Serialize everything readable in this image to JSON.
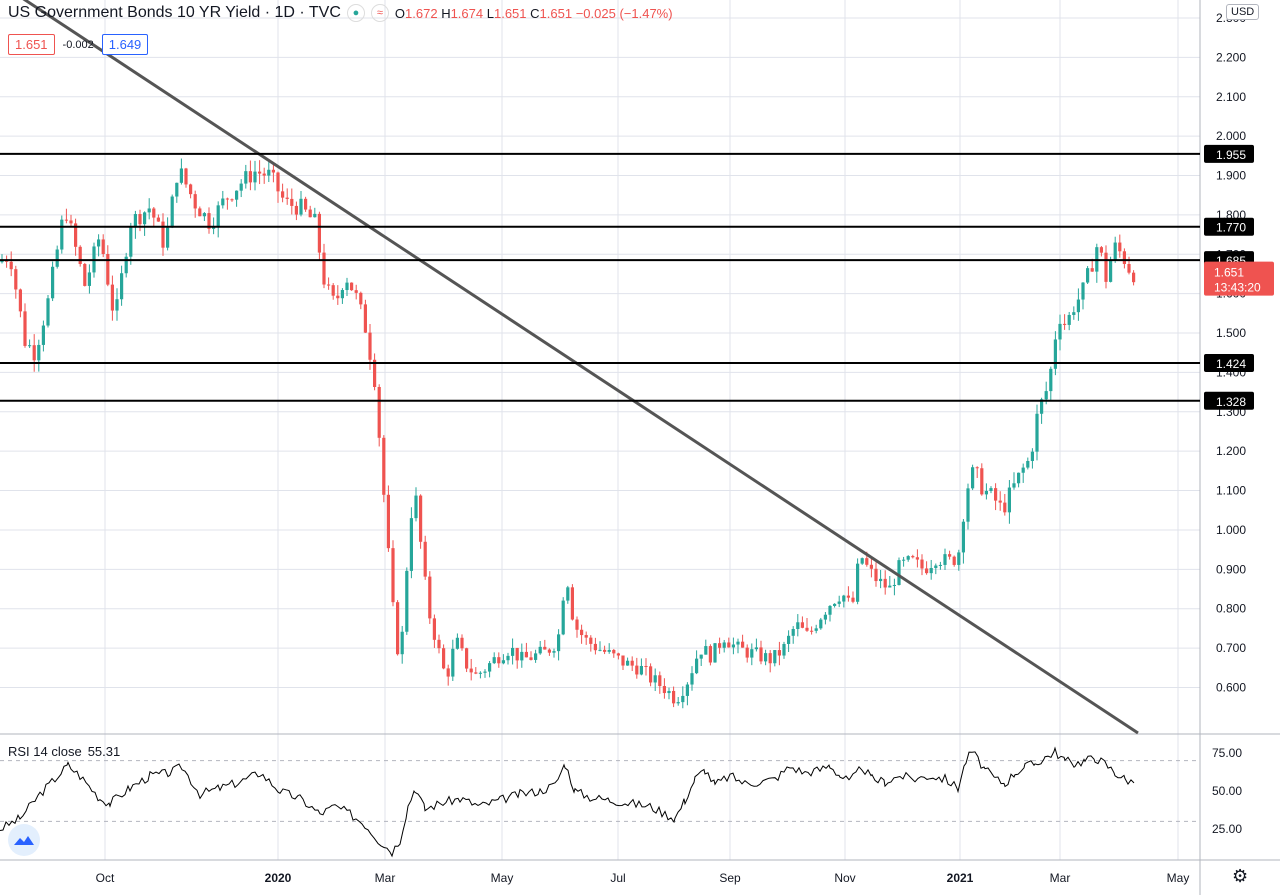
{
  "header": {
    "title": "US Government Bonds 10 YR Yield · 1D · TVC",
    "o_label": "O",
    "o_val": "1.672",
    "h_label": "H",
    "h_val": "1.674",
    "l_label": "L",
    "l_val": "1.651",
    "c_label": "C",
    "c_val": "1.651",
    "change": "−0.025 (−1.47%)",
    "approx_icon": "≈"
  },
  "prices": {
    "sell": "1.651",
    "spread": "-0.002",
    "buy": "1.649"
  },
  "currency": "USD",
  "rsi": {
    "label": "RSI 14 close",
    "value": "55.31"
  },
  "colors": {
    "up": "#26a69a",
    "down": "#ef5350",
    "line": "#000000",
    "trend": "#555555",
    "grid": "#e0e3eb"
  },
  "chart_data": {
    "type": "candlestick",
    "y_range": [
      0.52,
      2.36
    ],
    "y_ticks": [
      "2.300",
      "2.200",
      "2.100",
      "2.000",
      "1.900",
      "1.800",
      "1.700",
      "1.600",
      "1.500",
      "1.400",
      "1.300",
      "1.200",
      "1.100",
      "1.000",
      "0.900",
      "0.800",
      "0.700",
      "0.600"
    ],
    "x_ticks": [
      "Oct",
      "2020",
      "Mar",
      "May",
      "Jul",
      "Sep",
      "Nov",
      "2021",
      "Mar",
      "May"
    ],
    "levels": [
      "1.955",
      "1.770",
      "1.685",
      "1.424",
      "1.328"
    ],
    "current_price": "1.651",
    "countdown": "13:43:20",
    "trendline": {
      "from": [
        "2019-07",
        2.38
      ],
      "to": [
        "2021-03",
        0.52
      ]
    },
    "anchors": [
      [
        0,
        1.68
      ],
      [
        10,
        1.7
      ],
      [
        25,
        1.48
      ],
      [
        35,
        1.45
      ],
      [
        48,
        1.58
      ],
      [
        65,
        1.82
      ],
      [
        85,
        1.62
      ],
      [
        100,
        1.75
      ],
      [
        115,
        1.53
      ],
      [
        130,
        1.78
      ],
      [
        150,
        1.82
      ],
      [
        165,
        1.72
      ],
      [
        178,
        1.92
      ],
      [
        195,
        1.83
      ],
      [
        210,
        1.78
      ],
      [
        225,
        1.84
      ],
      [
        240,
        1.88
      ],
      [
        255,
        1.91
      ],
      [
        270,
        1.9
      ],
      [
        285,
        1.83
      ],
      [
        300,
        1.82
      ],
      [
        315,
        1.78
      ],
      [
        325,
        1.62
      ],
      [
        335,
        1.57
      ],
      [
        345,
        1.65
      ],
      [
        355,
        1.6
      ],
      [
        365,
        1.52
      ],
      [
        375,
        1.38
      ],
      [
        385,
        1.05
      ],
      [
        392,
        0.82
      ],
      [
        400,
        0.65
      ],
      [
        408,
        0.95
      ],
      [
        414,
        1.12
      ],
      [
        420,
        0.98
      ],
      [
        428,
        0.8
      ],
      [
        436,
        0.72
      ],
      [
        446,
        0.62
      ],
      [
        456,
        0.72
      ],
      [
        466,
        0.66
      ],
      [
        476,
        0.63
      ],
      [
        486,
        0.65
      ],
      [
        498,
        0.68
      ],
      [
        510,
        0.7
      ],
      [
        522,
        0.67
      ],
      [
        534,
        0.68
      ],
      [
        546,
        0.69
      ],
      [
        558,
        0.72
      ],
      [
        566,
        0.9
      ],
      [
        574,
        0.76
      ],
      [
        586,
        0.72
      ],
      [
        598,
        0.7
      ],
      [
        612,
        0.68
      ],
      [
        626,
        0.66
      ],
      [
        640,
        0.65
      ],
      [
        652,
        0.62
      ],
      [
        664,
        0.6
      ],
      [
        676,
        0.57
      ],
      [
        688,
        0.62
      ],
      [
        700,
        0.7
      ],
      [
        712,
        0.68
      ],
      [
        724,
        0.73
      ],
      [
        736,
        0.7
      ],
      [
        748,
        0.69
      ],
      [
        760,
        0.68
      ],
      [
        772,
        0.67
      ],
      [
        784,
        0.7
      ],
      [
        796,
        0.76
      ],
      [
        808,
        0.73
      ],
      [
        820,
        0.78
      ],
      [
        832,
        0.82
      ],
      [
        842,
        0.84
      ],
      [
        852,
        0.8
      ],
      [
        860,
        0.94
      ],
      [
        868,
        0.9
      ],
      [
        878,
        0.87
      ],
      [
        890,
        0.85
      ],
      [
        900,
        0.91
      ],
      [
        912,
        0.92
      ],
      [
        924,
        0.9
      ],
      [
        936,
        0.93
      ],
      [
        948,
        0.92
      ],
      [
        958,
        0.93
      ],
      [
        966,
        1.1
      ],
      [
        974,
        1.15
      ],
      [
        984,
        1.1
      ],
      [
        994,
        1.08
      ],
      [
        1002,
        1.05
      ],
      [
        1012,
        1.1
      ],
      [
        1022,
        1.15
      ],
      [
        1030,
        1.18
      ],
      [
        1038,
        1.3
      ],
      [
        1046,
        1.35
      ],
      [
        1052,
        1.42
      ],
      [
        1058,
        1.55
      ],
      [
        1066,
        1.52
      ],
      [
        1074,
        1.57
      ],
      [
        1082,
        1.6
      ],
      [
        1090,
        1.66
      ],
      [
        1098,
        1.73
      ],
      [
        1106,
        1.64
      ],
      [
        1114,
        1.72
      ],
      [
        1122,
        1.7
      ],
      [
        1130,
        1.66
      ],
      [
        1134,
        1.651
      ]
    ],
    "rsi_levels": [
      70,
      30
    ],
    "rsi_ticks": [
      "75.00",
      "50.00",
      "25.00"
    ],
    "rsi_anchors": [
      [
        0,
        25
      ],
      [
        20,
        32
      ],
      [
        40,
        48
      ],
      [
        55,
        58
      ],
      [
        68,
        67
      ],
      [
        80,
        60
      ],
      [
        100,
        45
      ],
      [
        110,
        42
      ],
      [
        130,
        52
      ],
      [
        150,
        60
      ],
      [
        170,
        62
      ],
      [
        182,
        66
      ],
      [
        200,
        48
      ],
      [
        220,
        52
      ],
      [
        240,
        56
      ],
      [
        260,
        62
      ],
      [
        280,
        50
      ],
      [
        300,
        45
      ],
      [
        320,
        35
      ],
      [
        335,
        40
      ],
      [
        350,
        35
      ],
      [
        365,
        28
      ],
      [
        378,
        18
      ],
      [
        392,
        10
      ],
      [
        400,
        18
      ],
      [
        408,
        40
      ],
      [
        415,
        52
      ],
      [
        425,
        38
      ],
      [
        440,
        42
      ],
      [
        460,
        45
      ],
      [
        480,
        40
      ],
      [
        500,
        44
      ],
      [
        520,
        48
      ],
      [
        540,
        50
      ],
      [
        555,
        54
      ],
      [
        565,
        68
      ],
      [
        575,
        50
      ],
      [
        590,
        46
      ],
      [
        610,
        44
      ],
      [
        630,
        42
      ],
      [
        650,
        40
      ],
      [
        665,
        35
      ],
      [
        675,
        32
      ],
      [
        685,
        44
      ],
      [
        695,
        58
      ],
      [
        705,
        64
      ],
      [
        715,
        54
      ],
      [
        730,
        60
      ],
      [
        745,
        55
      ],
      [
        760,
        56
      ],
      [
        775,
        58
      ],
      [
        790,
        66
      ],
      [
        805,
        62
      ],
      [
        820,
        64
      ],
      [
        830,
        67
      ],
      [
        840,
        60
      ],
      [
        850,
        56
      ],
      [
        862,
        66
      ],
      [
        872,
        58
      ],
      [
        885,
        56
      ],
      [
        900,
        60
      ],
      [
        915,
        58
      ],
      [
        930,
        60
      ],
      [
        945,
        58
      ],
      [
        958,
        52
      ],
      [
        966,
        70
      ],
      [
        972,
        76
      ],
      [
        985,
        64
      ],
      [
        995,
        58
      ],
      [
        1005,
        55
      ],
      [
        1015,
        62
      ],
      [
        1025,
        66
      ],
      [
        1035,
        68
      ],
      [
        1045,
        72
      ],
      [
        1055,
        76
      ],
      [
        1065,
        70
      ],
      [
        1075,
        68
      ],
      [
        1085,
        70
      ],
      [
        1095,
        72
      ],
      [
        1105,
        68
      ],
      [
        1115,
        62
      ],
      [
        1125,
        58
      ],
      [
        1134,
        55.3
      ]
    ]
  }
}
